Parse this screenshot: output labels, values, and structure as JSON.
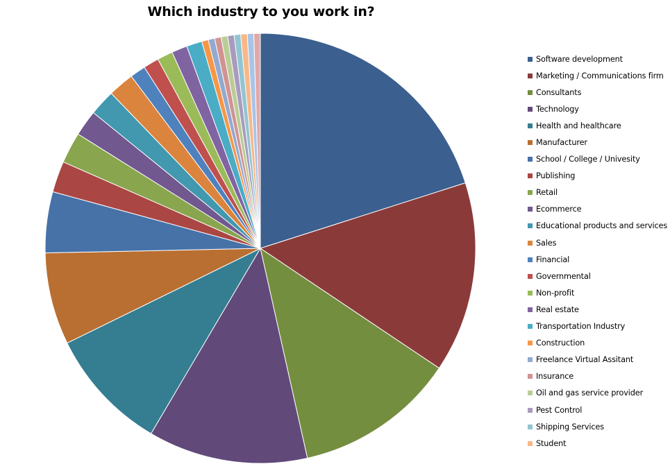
{
  "chart_data": {
    "type": "pie",
    "title": "Which industry to you work in?",
    "start_angle_deg": 0,
    "direction": "clockwise",
    "legend_position": "right",
    "slices": [
      {
        "label": "Software development",
        "value": 20.6,
        "color": "#3b5f8e"
      },
      {
        "label": "Marketing / Communications firm",
        "value": 14.7,
        "color": "#8b3a3a"
      },
      {
        "label": "Consultants",
        "value": 12.4,
        "color": "#748e3f"
      },
      {
        "label": "Technology",
        "value": 12.3,
        "color": "#614a7a"
      },
      {
        "label": "Health and healthcare",
        "value": 9.5,
        "color": "#357d91"
      },
      {
        "label": "Manufacturer",
        "value": 7.1,
        "color": "#b96f31"
      },
      {
        "label": "School / College / Univesity",
        "value": 4.7,
        "color": "#4672a8"
      },
      {
        "label": "Publishing",
        "value": 2.4,
        "color": "#aa4643"
      },
      {
        "label": "Retail",
        "value": 2.4,
        "color": "#89a54e"
      },
      {
        "label": "Ecommerce",
        "value": 2.0,
        "color": "#71588f"
      },
      {
        "label": "Educational products and services",
        "value": 2.0,
        "color": "#4198af"
      },
      {
        "label": "Sales",
        "value": 2.0,
        "color": "#db843d"
      },
      {
        "label": "Financial",
        "value": 1.2,
        "color": "#4f81bd"
      },
      {
        "label": "Governmental",
        "value": 1.2,
        "color": "#c0504d"
      },
      {
        "label": "Non-profit",
        "value": 1.2,
        "color": "#9bbb59"
      },
      {
        "label": "Real estate",
        "value": 1.2,
        "color": "#8064a2"
      },
      {
        "label": "Transportation Industry",
        "value": 1.2,
        "color": "#4bacc6"
      },
      {
        "label": "Construction",
        "value": 0.5,
        "color": "#f79646"
      },
      {
        "label": "Freelance Virtual Assitant",
        "value": 0.5,
        "color": "#93a9cf"
      },
      {
        "label": "Insurance",
        "value": 0.5,
        "color": "#d19392"
      },
      {
        "label": "Oil and gas service provider",
        "value": 0.5,
        "color": "#b9cd96"
      },
      {
        "label": "Pest Control",
        "value": 0.5,
        "color": "#a99bbd"
      },
      {
        "label": "Shipping Services",
        "value": 0.5,
        "color": "#92c5d3"
      },
      {
        "label": "Student",
        "value": 0.5,
        "color": "#f9b787"
      },
      {
        "label": "",
        "value": 0.5,
        "color": "#a9c4e8"
      },
      {
        "label": "",
        "value": 0.5,
        "color": "#e0a9a8"
      }
    ]
  }
}
